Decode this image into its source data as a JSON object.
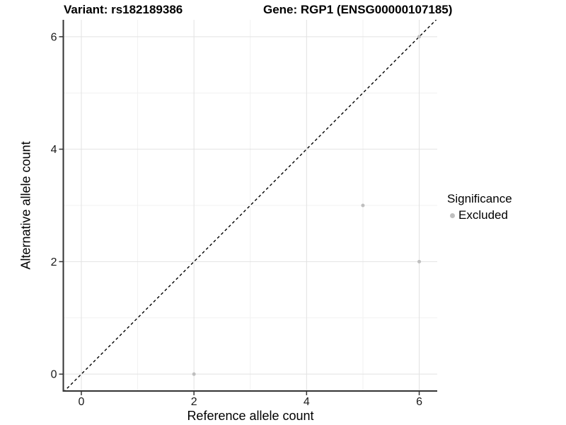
{
  "chart_data": {
    "type": "scatter",
    "title_left": "Variant: rs182189386",
    "title_right": "Gene: RGP1 (ENSG00000107185)",
    "xlabel": "Reference allele count",
    "ylabel": "Alternative allele count",
    "xlim": [
      -0.32,
      6.32
    ],
    "ylim": [
      -0.3,
      6.3
    ],
    "x_ticks": [
      0,
      2,
      4,
      6
    ],
    "y_ticks": [
      0,
      2,
      4,
      6
    ],
    "x_minor_ticks": [
      1,
      3,
      5
    ],
    "y_minor_ticks": [
      1,
      3,
      5
    ],
    "grid": "on",
    "series": [
      {
        "name": "Excluded",
        "color": "#bfbfbf",
        "points": [
          {
            "x": 2,
            "y": 0
          },
          {
            "x": 5,
            "y": 3
          },
          {
            "x": 6,
            "y": 2
          },
          {
            "x": 6,
            "y": 6
          }
        ]
      }
    ],
    "reference_line": {
      "type": "identity",
      "description": "y = x",
      "style": "dashed",
      "color": "#000000"
    },
    "legend": {
      "title": "Significance",
      "position": "right",
      "items": [
        {
          "label": "Excluded",
          "color": "#bfbfbf",
          "marker": "circle"
        }
      ]
    },
    "colors": {
      "grid_major": "#e2e2e2",
      "grid_minor": "#f1f1f1",
      "axis_line": "#333333",
      "tick_mark": "#333333",
      "tick_label": "#1a1a1a",
      "point": "#bfbfbf"
    }
  }
}
